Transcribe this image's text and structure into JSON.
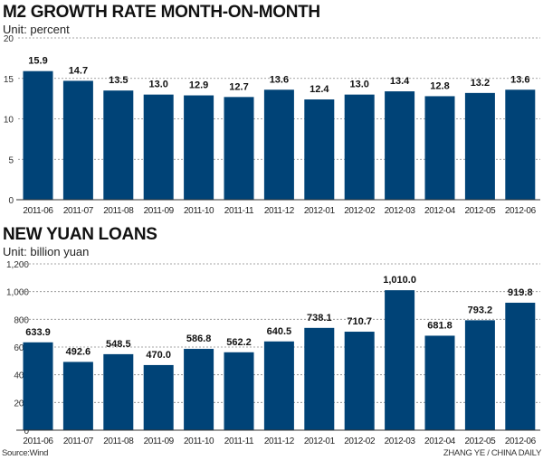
{
  "chart_data": [
    {
      "type": "bar",
      "title": "M2 GROWTH RATE MONTH-ON-MONTH",
      "subtitle": "Unit: percent",
      "categories": [
        "2011-06",
        "2011-07",
        "2011-08",
        "2011-09",
        "2011-10",
        "2011-11",
        "2011-12",
        "2012-01",
        "2012-02",
        "2012-03",
        "2012-04",
        "2012-05",
        "2012-06"
      ],
      "values": [
        15.9,
        14.7,
        13.5,
        13.0,
        12.9,
        12.7,
        13.6,
        12.4,
        13.0,
        13.4,
        12.8,
        13.2,
        13.6
      ],
      "labels": [
        "15.9",
        "14.7",
        "13.5",
        "13.0",
        "12.9",
        "12.7",
        "13.6",
        "12.4",
        "13.0",
        "13.4",
        "12.8",
        "13.2",
        "13.6"
      ],
      "ylim": [
        0,
        20
      ],
      "yticks": [
        0,
        5,
        10,
        15,
        20
      ],
      "ytick_labels": [
        "0",
        "5",
        "10",
        "15",
        "20"
      ],
      "grid": true,
      "color": "#004377"
    },
    {
      "type": "bar",
      "title": "NEW YUAN LOANS",
      "subtitle": "Unit: billion yuan",
      "categories": [
        "2011-06",
        "2011-07",
        "2011-08",
        "2011-09",
        "2011-10",
        "2011-11",
        "2011-12",
        "2012-01",
        "2012-02",
        "2012-03",
        "2012-04",
        "2012-05",
        "2012-06"
      ],
      "values": [
        633.9,
        492.6,
        548.5,
        470.0,
        586.8,
        562.2,
        640.5,
        738.1,
        710.7,
        1010.0,
        681.8,
        793.2,
        919.8
      ],
      "labels": [
        "633.9",
        "492.6",
        "548.5",
        "470.0",
        "586.8",
        "562.2",
        "640.5",
        "738.1",
        "710.7",
        "1,010.0",
        "681.8",
        "793.2",
        "919.8"
      ],
      "ylim": [
        0,
        1200
      ],
      "yticks": [
        0,
        200,
        400,
        600,
        800,
        1000,
        1200
      ],
      "ytick_labels": [
        "0",
        "200",
        "400",
        "600",
        "800",
        "1,000",
        "1,200"
      ],
      "grid": true,
      "color": "#004377"
    }
  ],
  "footer": {
    "source": "Source:Wind",
    "credit": "ZHANG YE / CHINA DAILY"
  }
}
